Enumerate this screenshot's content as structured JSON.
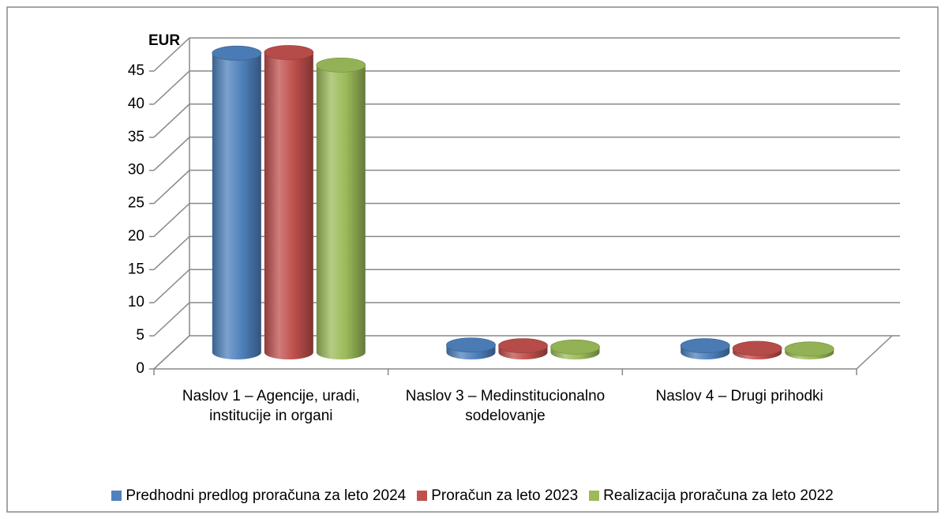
{
  "chart_data": {
    "type": "bar3d",
    "y_axis_label": "EUR",
    "categories": [
      "Naslov 1 – Agencije, uradi, institucije in organi",
      "Naslov 3 – Medinstitucionalno sodelovanje",
      "Naslov 4 – Drugi prihodki"
    ],
    "series": [
      {
        "name": "Predhodni predlog proračuna za leto 2024",
        "color": "#4f81bd",
        "values": [
          45.2,
          1.1,
          1.0
        ]
      },
      {
        "name": "Proračun za leto 2023",
        "color": "#c0504d",
        "values": [
          45.3,
          1.0,
          0.6
        ]
      },
      {
        "name": "Realizacija proračuna za leto 2022",
        "color": "#9bbb59",
        "values": [
          43.4,
          0.8,
          0.5
        ]
      }
    ],
    "ylim": [
      0,
      45
    ],
    "yticks": [
      0,
      5,
      10,
      15,
      20,
      25,
      30,
      35,
      40,
      45
    ],
    "grid": true,
    "legend": "bottom"
  }
}
